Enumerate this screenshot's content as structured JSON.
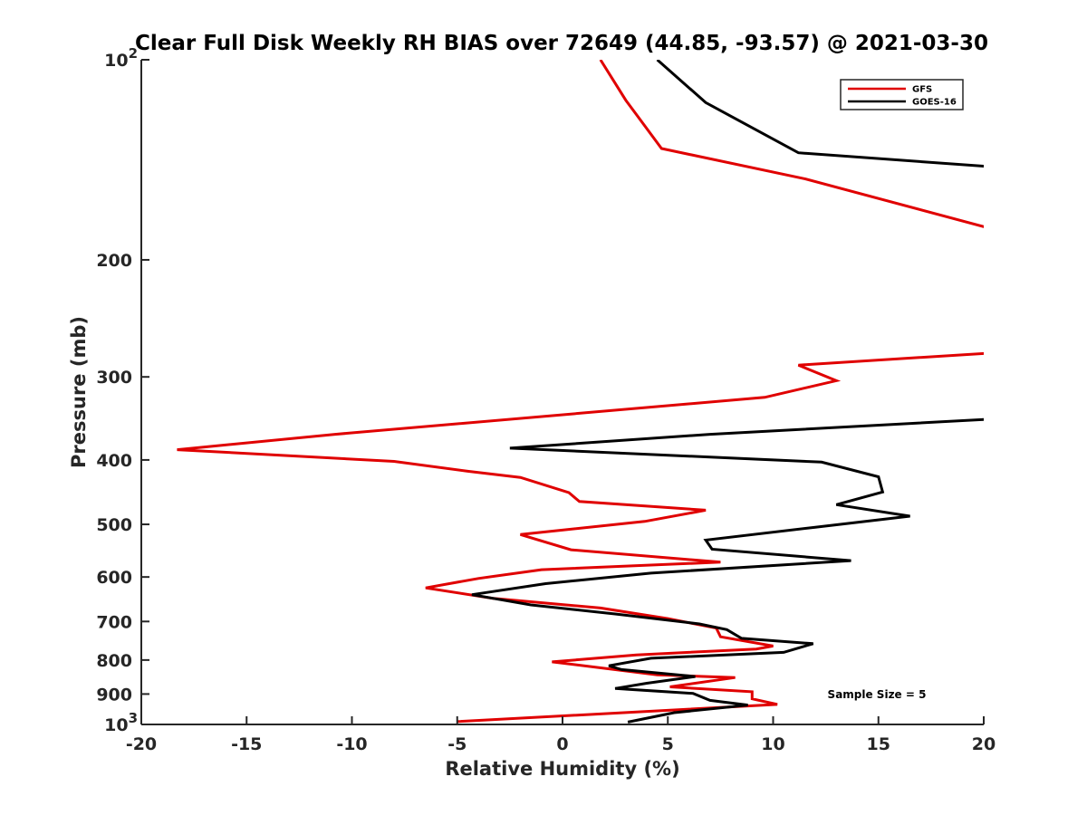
{
  "chart_data": {
    "type": "line",
    "title": "Clear Full Disk Weekly RH BIAS over 72649 (44.85, -93.57) @ 2021-03-30",
    "xlabel": "Relative Humidity (%)",
    "ylabel": "Pressure (mb)",
    "xlim": [
      -20,
      20
    ],
    "ylim": [
      100,
      1000
    ],
    "y_scale": "log",
    "y_reversed": true,
    "x_ticks": [
      "-20",
      "-15",
      "-10",
      "-5",
      "0",
      "5",
      "10",
      "15",
      "20"
    ],
    "y_ticks": [
      {
        "value": 100,
        "label": "10",
        "sup": "2"
      },
      {
        "value": 200,
        "label": "200"
      },
      {
        "value": 300,
        "label": "300"
      },
      {
        "value": 400,
        "label": "400"
      },
      {
        "value": 500,
        "label": "500"
      },
      {
        "value": 600,
        "label": "600"
      },
      {
        "value": 700,
        "label": "700"
      },
      {
        "value": 800,
        "label": "800"
      },
      {
        "value": 900,
        "label": "900"
      },
      {
        "value": 1000,
        "label": "10",
        "sup": "3"
      }
    ],
    "grid": false,
    "legend_position": "top-right",
    "annotation": "Sample Size = 5",
    "series": [
      {
        "name": "GFS",
        "color": "#e00000",
        "points": [
          [
            1.8,
            100
          ],
          [
            3,
            115
          ],
          [
            4.7,
            136
          ],
          [
            11.5,
            151
          ],
          [
            20.5,
            180
          ],
          [
            20.5,
            276
          ],
          [
            11.2,
            288
          ],
          [
            13,
            304
          ],
          [
            9.6,
            322
          ],
          [
            -10.8,
            366
          ],
          [
            -18.3,
            386
          ],
          [
            -8,
            402
          ],
          [
            -4.5,
            416
          ],
          [
            -2,
            425
          ],
          [
            0.3,
            448
          ],
          [
            0.8,
            462
          ],
          [
            6.8,
            476
          ],
          [
            3.9,
            495
          ],
          [
            -2,
            518
          ],
          [
            0.4,
            546
          ],
          [
            7.5,
            570
          ],
          [
            -1,
            585
          ],
          [
            -4,
            603
          ],
          [
            -6.5,
            623
          ],
          [
            -3.3,
            646
          ],
          [
            1.8,
            668
          ],
          [
            5,
            693
          ],
          [
            7.3,
            716
          ],
          [
            7.5,
            738
          ],
          [
            10,
            762
          ],
          [
            9.2,
            770
          ],
          [
            3.5,
            786
          ],
          [
            -0.5,
            805
          ],
          [
            4.5,
            842
          ],
          [
            8.2,
            850
          ],
          [
            5.1,
            878
          ],
          [
            9,
            893
          ],
          [
            9,
            915
          ],
          [
            10.2,
            933
          ],
          [
            -5,
            990
          ]
        ]
      },
      {
        "name": "GOES-16",
        "color": "#000000",
        "points": [
          [
            4.5,
            100
          ],
          [
            6.8,
            116
          ],
          [
            11.2,
            138
          ],
          [
            20.5,
            145
          ],
          [
            20.5,
            347
          ],
          [
            7,
            366
          ],
          [
            -2.5,
            384
          ],
          [
            12.3,
            403
          ],
          [
            15,
            424
          ],
          [
            15.2,
            447
          ],
          [
            13,
            467
          ],
          [
            16.5,
            486
          ],
          [
            12,
            505
          ],
          [
            6.8,
            528
          ],
          [
            7.1,
            545
          ],
          [
            13.7,
            567
          ],
          [
            4.2,
            592
          ],
          [
            -0.8,
            614
          ],
          [
            -4.3,
            638
          ],
          [
            -1.5,
            661
          ],
          [
            2.5,
            682
          ],
          [
            6.5,
            706
          ],
          [
            7.8,
            720
          ],
          [
            8.5,
            742
          ],
          [
            11.9,
            756
          ],
          [
            10.5,
            779
          ],
          [
            4.2,
            795
          ],
          [
            2.2,
            816
          ],
          [
            2.8,
            827
          ],
          [
            6.3,
            847
          ],
          [
            4,
            867
          ],
          [
            2.5,
            883
          ],
          [
            6.2,
            898
          ],
          [
            7,
            920
          ],
          [
            8.8,
            935
          ],
          [
            5.3,
            960
          ],
          [
            3.1,
            992
          ]
        ]
      }
    ]
  }
}
